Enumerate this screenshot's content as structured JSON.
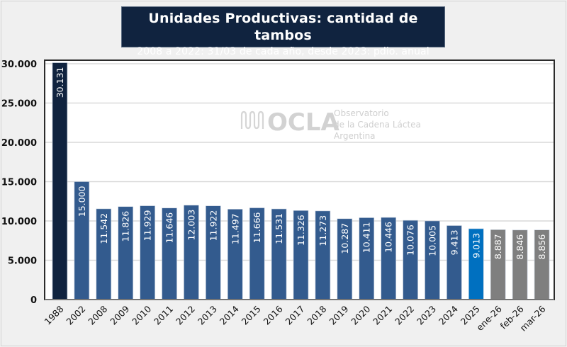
{
  "chart_data": {
    "type": "bar",
    "title": "Unidades Productivas: cantidad de tambos",
    "subtitle": "2008 a 2022: 31/03 de cada año, desde 2023: pdio. anual",
    "xlabel": "",
    "ylabel": "",
    "ylim": [
      0,
      30000
    ],
    "yticks": [
      0,
      5000,
      10000,
      15000,
      20000,
      25000,
      30000
    ],
    "ytick_labels": [
      "0",
      "5.000",
      "10.000",
      "15.000",
      "20.000",
      "25.000",
      "30.000"
    ],
    "grid": true,
    "legend": "none",
    "categories": [
      "1988",
      "2002",
      "2008",
      "2009",
      "2010",
      "2011",
      "2012",
      "2013",
      "2014",
      "2015",
      "2016",
      "2017",
      "2018",
      "2019",
      "2020",
      "2021",
      "2022",
      "2023",
      "2024",
      "2025",
      "ene-26",
      "feb-26",
      "mar-26"
    ],
    "values": [
      30131,
      15000,
      11542,
      11826,
      11929,
      11646,
      12003,
      11922,
      11497,
      11666,
      11531,
      11326,
      11273,
      10287,
      10411,
      10446,
      10076,
      10005,
      9413,
      9013,
      8887,
      8846,
      8856
    ],
    "data_labels": [
      "30.131",
      "15.000",
      "11.542",
      "11.826",
      "11.929",
      "11.646",
      "12.003",
      "11.922",
      "11.497",
      "11.666",
      "11.531",
      "11.326",
      "11.273",
      "10.287",
      "10.411",
      "10.446",
      "10.076",
      "10.005",
      "9.413",
      "9.013",
      "8.887",
      "8.846",
      "8.856"
    ],
    "bar_colors": [
      "#10233f",
      "#335b8e",
      "#335b8e",
      "#335b8e",
      "#335b8e",
      "#335b8e",
      "#335b8e",
      "#335b8e",
      "#335b8e",
      "#335b8e",
      "#335b8e",
      "#335b8e",
      "#335b8e",
      "#335b8e",
      "#335b8e",
      "#335b8e",
      "#335b8e",
      "#335b8e",
      "#335b8e",
      "#0070c0",
      "#7f7f7f",
      "#7f7f7f",
      "#7f7f7f"
    ]
  },
  "watermark": {
    "brand": "OCLA",
    "line1": "Observatorio",
    "line2": "de la Cadena Láctea",
    "line3": "Argentina",
    "icon": "ocla-wave-logo-icon"
  },
  "colors": {
    "title_bg": "#10233f",
    "page_bg": "#f0f0f0",
    "plot_bg": "#ffffff",
    "grid": "#d9d9d9"
  }
}
